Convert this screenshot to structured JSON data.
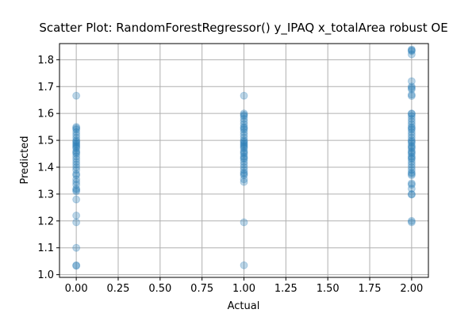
{
  "chart_data": {
    "type": "scatter",
    "title": "Scatter Plot: RandomForestRegressor() y_IPAQ x_totalArea robust OE",
    "xlabel": "Actual",
    "ylabel": "Predicted",
    "xlim": [
      -0.1,
      2.1
    ],
    "ylim": [
      0.99,
      1.86
    ],
    "x_ticks": [
      0.0,
      0.25,
      0.5,
      0.75,
      1.0,
      1.25,
      1.5,
      1.75,
      2.0
    ],
    "x_tick_labels": [
      "0.00",
      "0.25",
      "0.50",
      "0.75",
      "1.00",
      "1.25",
      "1.50",
      "1.75",
      "2.00"
    ],
    "y_ticks": [
      1.0,
      1.1,
      1.2,
      1.3,
      1.4,
      1.5,
      1.6,
      1.7,
      1.8
    ],
    "y_tick_labels": [
      "1.0",
      "1.1",
      "1.2",
      "1.3",
      "1.4",
      "1.5",
      "1.6",
      "1.7",
      "1.8"
    ],
    "grid": true,
    "marker_color": "#1f77b4",
    "marker_alpha": 0.3,
    "points": [
      {
        "x": 0,
        "y": 1.666
      },
      {
        "x": 0,
        "y": 1.55
      },
      {
        "x": 0,
        "y": 1.545
      },
      {
        "x": 0,
        "y": 1.54
      },
      {
        "x": 0,
        "y": 1.53
      },
      {
        "x": 0,
        "y": 1.52
      },
      {
        "x": 0,
        "y": 1.51
      },
      {
        "x": 0,
        "y": 1.5
      },
      {
        "x": 0,
        "y": 1.495
      },
      {
        "x": 0,
        "y": 1.49
      },
      {
        "x": 0,
        "y": 1.485
      },
      {
        "x": 0,
        "y": 1.48
      },
      {
        "x": 0,
        "y": 1.475
      },
      {
        "x": 0,
        "y": 1.47
      },
      {
        "x": 0,
        "y": 1.46
      },
      {
        "x": 0,
        "y": 1.455
      },
      {
        "x": 0,
        "y": 1.45
      },
      {
        "x": 0,
        "y": 1.44
      },
      {
        "x": 0,
        "y": 1.43
      },
      {
        "x": 0,
        "y": 1.42
      },
      {
        "x": 0,
        "y": 1.41
      },
      {
        "x": 0,
        "y": 1.4
      },
      {
        "x": 0,
        "y": 1.39
      },
      {
        "x": 0,
        "y": 1.375
      },
      {
        "x": 0,
        "y": 1.37
      },
      {
        "x": 0,
        "y": 1.355
      },
      {
        "x": 0,
        "y": 1.345
      },
      {
        "x": 0,
        "y": 1.335
      },
      {
        "x": 0,
        "y": 1.32
      },
      {
        "x": 0,
        "y": 1.315
      },
      {
        "x": 0,
        "y": 1.31
      },
      {
        "x": 0,
        "y": 1.28
      },
      {
        "x": 0,
        "y": 1.22
      },
      {
        "x": 0,
        "y": 1.195
      },
      {
        "x": 0,
        "y": 1.1
      },
      {
        "x": 0,
        "y": 1.035
      },
      {
        "x": 0,
        "y": 1.033
      },
      {
        "x": 1,
        "y": 1.666
      },
      {
        "x": 1,
        "y": 1.6
      },
      {
        "x": 1,
        "y": 1.595
      },
      {
        "x": 1,
        "y": 1.59
      },
      {
        "x": 1,
        "y": 1.58
      },
      {
        "x": 1,
        "y": 1.57
      },
      {
        "x": 1,
        "y": 1.56
      },
      {
        "x": 1,
        "y": 1.55
      },
      {
        "x": 1,
        "y": 1.545
      },
      {
        "x": 1,
        "y": 1.54
      },
      {
        "x": 1,
        "y": 1.53
      },
      {
        "x": 1,
        "y": 1.52
      },
      {
        "x": 1,
        "y": 1.51
      },
      {
        "x": 1,
        "y": 1.5
      },
      {
        "x": 1,
        "y": 1.495
      },
      {
        "x": 1,
        "y": 1.49
      },
      {
        "x": 1,
        "y": 1.485
      },
      {
        "x": 1,
        "y": 1.48
      },
      {
        "x": 1,
        "y": 1.475
      },
      {
        "x": 1,
        "y": 1.47
      },
      {
        "x": 1,
        "y": 1.46
      },
      {
        "x": 1,
        "y": 1.455
      },
      {
        "x": 1,
        "y": 1.45
      },
      {
        "x": 1,
        "y": 1.44
      },
      {
        "x": 1,
        "y": 1.435
      },
      {
        "x": 1,
        "y": 1.43
      },
      {
        "x": 1,
        "y": 1.42
      },
      {
        "x": 1,
        "y": 1.41
      },
      {
        "x": 1,
        "y": 1.4
      },
      {
        "x": 1,
        "y": 1.39
      },
      {
        "x": 1,
        "y": 1.38
      },
      {
        "x": 1,
        "y": 1.375
      },
      {
        "x": 1,
        "y": 1.37
      },
      {
        "x": 1,
        "y": 1.355
      },
      {
        "x": 1,
        "y": 1.345
      },
      {
        "x": 1,
        "y": 1.195
      },
      {
        "x": 1,
        "y": 1.035
      },
      {
        "x": 2,
        "y": 1.838
      },
      {
        "x": 2,
        "y": 1.835
      },
      {
        "x": 2,
        "y": 1.832
      },
      {
        "x": 2,
        "y": 1.82
      },
      {
        "x": 2,
        "y": 1.72
      },
      {
        "x": 2,
        "y": 1.7
      },
      {
        "x": 2,
        "y": 1.695
      },
      {
        "x": 2,
        "y": 1.69
      },
      {
        "x": 2,
        "y": 1.67
      },
      {
        "x": 2,
        "y": 1.665
      },
      {
        "x": 2,
        "y": 1.6
      },
      {
        "x": 2,
        "y": 1.598
      },
      {
        "x": 2,
        "y": 1.59
      },
      {
        "x": 2,
        "y": 1.58
      },
      {
        "x": 2,
        "y": 1.57
      },
      {
        "x": 2,
        "y": 1.56
      },
      {
        "x": 2,
        "y": 1.55
      },
      {
        "x": 2,
        "y": 1.545
      },
      {
        "x": 2,
        "y": 1.54
      },
      {
        "x": 2,
        "y": 1.53
      },
      {
        "x": 2,
        "y": 1.52
      },
      {
        "x": 2,
        "y": 1.51
      },
      {
        "x": 2,
        "y": 1.5
      },
      {
        "x": 2,
        "y": 1.495
      },
      {
        "x": 2,
        "y": 1.49
      },
      {
        "x": 2,
        "y": 1.48
      },
      {
        "x": 2,
        "y": 1.475
      },
      {
        "x": 2,
        "y": 1.47
      },
      {
        "x": 2,
        "y": 1.46
      },
      {
        "x": 2,
        "y": 1.455
      },
      {
        "x": 2,
        "y": 1.45
      },
      {
        "x": 2,
        "y": 1.44
      },
      {
        "x": 2,
        "y": 1.435
      },
      {
        "x": 2,
        "y": 1.43
      },
      {
        "x": 2,
        "y": 1.42
      },
      {
        "x": 2,
        "y": 1.41
      },
      {
        "x": 2,
        "y": 1.4
      },
      {
        "x": 2,
        "y": 1.39
      },
      {
        "x": 2,
        "y": 1.38
      },
      {
        "x": 2,
        "y": 1.375
      },
      {
        "x": 2,
        "y": 1.37
      },
      {
        "x": 2,
        "y": 1.34
      },
      {
        "x": 2,
        "y": 1.335
      },
      {
        "x": 2,
        "y": 1.32
      },
      {
        "x": 2,
        "y": 1.3
      },
      {
        "x": 2,
        "y": 1.298
      },
      {
        "x": 2,
        "y": 1.2
      },
      {
        "x": 2,
        "y": 1.195
      }
    ]
  }
}
